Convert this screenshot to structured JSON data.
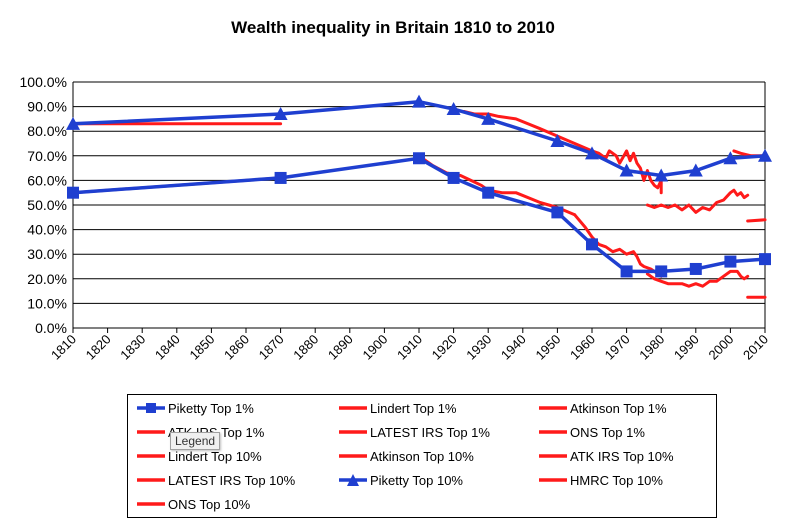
{
  "chart_data": {
    "type": "line",
    "title": "Wealth inequality  in Britain 1810 to 2010",
    "xlabel": "",
    "ylabel": "",
    "xlim": [
      1810,
      2010
    ],
    "ylim": [
      0,
      100
    ],
    "x_ticks": [
      "1810",
      "1820",
      "1830",
      "1840",
      "1850",
      "1860",
      "1870",
      "1880",
      "1890",
      "1900",
      "1910",
      "1920",
      "1930",
      "1940",
      "1950",
      "1960",
      "1970",
      "1980",
      "1990",
      "2000",
      "2010"
    ],
    "y_ticks": [
      "0.0%",
      "10.0%",
      "20.0%",
      "30.0%",
      "40.0%",
      "50.0%",
      "60.0%",
      "70.0%",
      "80.0%",
      "90.0%",
      "100.0%"
    ],
    "grid": "horizontal",
    "series": [
      {
        "name": "Piketty Top 1%",
        "color": "#1f3fd0",
        "marker": "square",
        "points": [
          [
            1810,
            55
          ],
          [
            1870,
            61
          ],
          [
            1910,
            69
          ],
          [
            1920,
            61
          ],
          [
            1930,
            55
          ],
          [
            1950,
            47
          ],
          [
            1960,
            34
          ],
          [
            1970,
            23
          ],
          [
            1980,
            23
          ],
          [
            1990,
            24
          ],
          [
            2000,
            27
          ],
          [
            2010,
            28
          ]
        ]
      },
      {
        "name": "Lindert Top 1%",
        "color": "#ff1a1a",
        "marker": "none",
        "points": [
          [
            1810,
            55
          ],
          [
            1870,
            61
          ]
        ]
      },
      {
        "name": "Atkinson Top 1%",
        "color": "#ff1a1a",
        "marker": "none",
        "points": [
          [
            1911,
            69
          ],
          [
            1914,
            66
          ],
          [
            1918,
            63
          ],
          [
            1922,
            62
          ],
          [
            1925,
            60
          ],
          [
            1928,
            58
          ],
          [
            1930,
            56
          ],
          [
            1934,
            55
          ],
          [
            1938,
            55
          ],
          [
            1945,
            51
          ],
          [
            1950,
            49
          ],
          [
            1955,
            46
          ]
        ]
      },
      {
        "name": "ATK IRS Top 1%",
        "color": "#ff1a1a",
        "marker": "none",
        "points": [
          [
            1955,
            46
          ],
          [
            1958,
            41
          ],
          [
            1960,
            37
          ],
          [
            1962,
            34
          ],
          [
            1964,
            33
          ],
          [
            1966,
            31
          ],
          [
            1968,
            32
          ],
          [
            1970,
            30
          ],
          [
            1972,
            31
          ],
          [
            1973,
            29
          ],
          [
            1974,
            26
          ],
          [
            1975,
            25
          ],
          [
            1977,
            24
          ],
          [
            1978,
            23
          ],
          [
            1980,
            21
          ]
        ]
      },
      {
        "name": "LATEST IRS Top 1%",
        "color": "#ff1a1a",
        "marker": "none",
        "points": [
          [
            1976,
            22
          ],
          [
            1978,
            20
          ],
          [
            1980,
            19
          ],
          [
            1982,
            18
          ],
          [
            1984,
            18
          ],
          [
            1986,
            18
          ],
          [
            1988,
            17
          ],
          [
            1990,
            18
          ],
          [
            1992,
            17
          ],
          [
            1994,
            19
          ],
          [
            1996,
            19
          ],
          [
            1998,
            21
          ],
          [
            2000,
            23
          ],
          [
            2002,
            23
          ],
          [
            2003,
            21
          ],
          [
            2004,
            20
          ],
          [
            2005,
            21
          ]
        ]
      },
      {
        "name": "ONS Top 1%",
        "color": "#ff1a1a",
        "marker": "none",
        "points": [
          [
            2005,
            12.5
          ],
          [
            2010,
            12.5
          ]
        ]
      },
      {
        "name": "Lindert Top 10%",
        "color": "#ff1a1a",
        "marker": "none",
        "points": [
          [
            1810,
            83
          ],
          [
            1870,
            83
          ]
        ]
      },
      {
        "name": "Atkinson Top 10%",
        "color": "#ff1a1a",
        "marker": "none",
        "points": [
          [
            1923,
            88
          ],
          [
            1926,
            87
          ],
          [
            1930,
            87
          ],
          [
            1933,
            86
          ],
          [
            1938,
            85
          ],
          [
            1945,
            81
          ],
          [
            1950,
            78
          ],
          [
            1955,
            75
          ],
          [
            1960,
            72
          ]
        ]
      },
      {
        "name": "ATK IRS Top 10%",
        "color": "#ff1a1a",
        "marker": "none",
        "points": [
          [
            1960,
            72
          ],
          [
            1962,
            71
          ],
          [
            1964,
            69
          ],
          [
            1965,
            72
          ],
          [
            1967,
            70
          ],
          [
            1968,
            67
          ],
          [
            1970,
            72
          ],
          [
            1971,
            68
          ],
          [
            1972,
            71
          ],
          [
            1973,
            67
          ],
          [
            1974,
            65
          ],
          [
            1975,
            60
          ],
          [
            1976,
            64
          ],
          [
            1977,
            60
          ],
          [
            1978,
            58
          ],
          [
            1979,
            57
          ],
          [
            1980,
            60
          ],
          [
            1980,
            55
          ]
        ]
      },
      {
        "name": "LATEST IRS Top 10%",
        "color": "#ff1a1a",
        "marker": "none",
        "points": [
          [
            1976,
            50
          ],
          [
            1978,
            49
          ],
          [
            1980,
            50
          ],
          [
            1982,
            49
          ],
          [
            1984,
            50
          ],
          [
            1986,
            48
          ],
          [
            1988,
            50
          ],
          [
            1990,
            47
          ],
          [
            1992,
            49
          ],
          [
            1994,
            48
          ],
          [
            1996,
            51
          ],
          [
            1998,
            52
          ],
          [
            2000,
            55
          ],
          [
            2001,
            56
          ],
          [
            2002,
            54
          ],
          [
            2003,
            55
          ],
          [
            2004,
            53
          ],
          [
            2005,
            54
          ]
        ]
      },
      {
        "name": "Piketty Top 10%",
        "color": "#1f3fd0",
        "marker": "triangle",
        "points": [
          [
            1810,
            83
          ],
          [
            1870,
            87
          ],
          [
            1910,
            92
          ],
          [
            1920,
            89
          ],
          [
            1930,
            85
          ],
          [
            1950,
            76
          ],
          [
            1960,
            71
          ],
          [
            1970,
            64
          ],
          [
            1980,
            62
          ],
          [
            1990,
            64
          ],
          [
            2000,
            69
          ],
          [
            2010,
            70
          ]
        ]
      },
      {
        "name": "HMRC Top 10%",
        "color": "#ff1a1a",
        "marker": "none",
        "points": [
          [
            2001,
            72
          ],
          [
            2003,
            71
          ],
          [
            2006,
            70
          ],
          [
            2010,
            70
          ]
        ]
      },
      {
        "name": "ONS Top 10%",
        "color": "#ff1a1a",
        "marker": "none",
        "points": [
          [
            2005,
            43.5
          ],
          [
            2010,
            44
          ]
        ]
      }
    ],
    "legend": {
      "position": "bottom",
      "items": [
        "Piketty Top 1%",
        "Lindert Top 1%",
        "Atkinson Top 1%",
        "ATK IRS Top 1%",
        "LATEST IRS Top 1%",
        "ONS Top 1%",
        "Lindert Top 10%",
        "Atkinson Top 10%",
        "ATK IRS Top 10%",
        "LATEST IRS Top 10%",
        "Piketty Top 10%",
        "HMRC Top 10%",
        "ONS Top 10%"
      ]
    }
  },
  "tooltip": {
    "text": "Legend"
  }
}
